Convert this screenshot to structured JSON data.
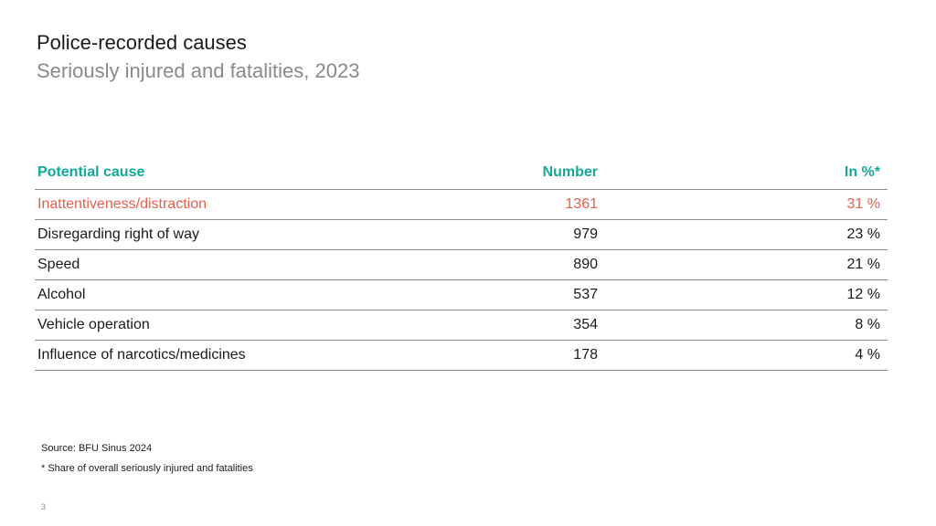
{
  "slide": {
    "title": "Police-recorded causes",
    "subtitle": "Seriously injured and fatalities, 2023",
    "page_number": "3"
  },
  "table": {
    "headers": {
      "cause": "Potential cause",
      "number": "Number",
      "percent": "In %*"
    },
    "rows": [
      {
        "cause": "Inattentiveness/distraction",
        "number": "1361",
        "percent": "31 %"
      },
      {
        "cause": "Disregarding right of way",
        "number": "979",
        "percent": "23 %"
      },
      {
        "cause": "Speed",
        "number": "890",
        "percent": "21 %"
      },
      {
        "cause": "Alcohol",
        "number": "537",
        "percent": "12 %"
      },
      {
        "cause": "Vehicle operation",
        "number": "354",
        "percent": "8 %"
      },
      {
        "cause": "Influence of narcotics/medicines",
        "number": "178",
        "percent": "4 %"
      }
    ]
  },
  "notes": {
    "source": "Source: BFU Sinus 2024",
    "footnote": "* Share of overall seriously injured and fatalities"
  },
  "colors": {
    "header_accent": "#14a89a",
    "highlight_row": "#e8604c",
    "subtitle_gray": "#8a8a8a"
  }
}
